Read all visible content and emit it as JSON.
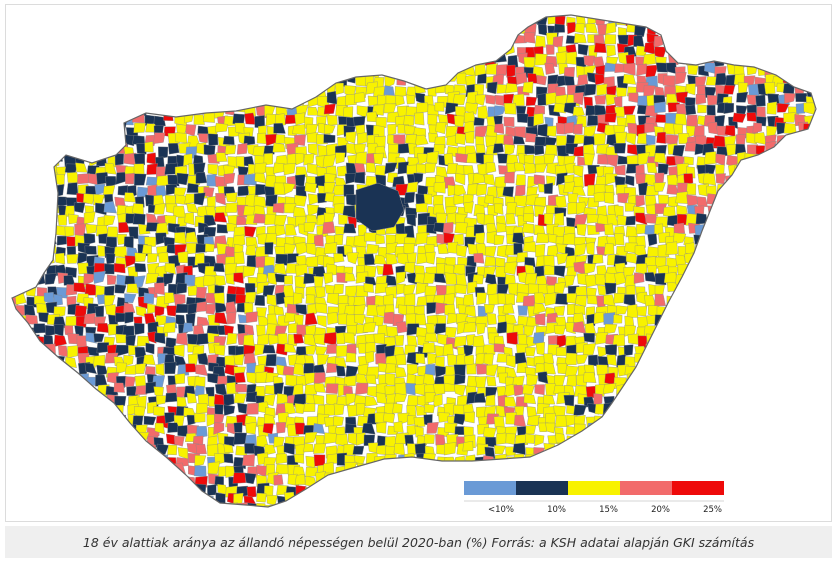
{
  "map": {
    "region": "Hungary",
    "metric": "18 év alattiak aránya az állandó népességen belül 2020-ban (%)",
    "classes": [
      {
        "label": "<10%",
        "color": "#6a9ad6"
      },
      {
        "label": "10%",
        "color": "#1a3354"
      },
      {
        "label": "15%",
        "color": "#f8f200"
      },
      {
        "label": "20%",
        "color": "#f26b6b"
      },
      {
        "label": "25%",
        "color": "#ee0a0a"
      }
    ],
    "border_color": "#8a8a8a"
  },
  "legend": {
    "ticks": [
      "<10%",
      "10%",
      "15%",
      "20%",
      "25%"
    ]
  },
  "caption": {
    "text": "18 év alattiak aránya az állandó népességen belül 2020-ban (%)  Forrás: a KSH adatai alapján GKI számítás"
  }
}
